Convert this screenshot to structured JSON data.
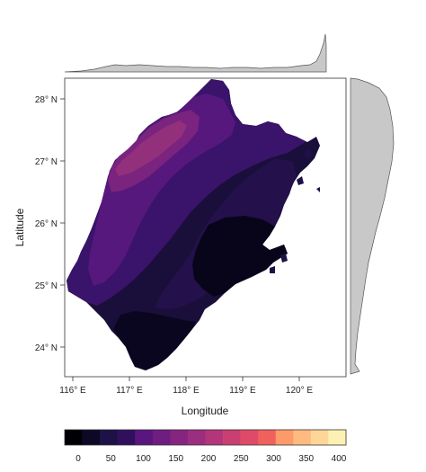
{
  "map": {
    "xlabel": "Longitude",
    "ylabel": "Latitude",
    "lon_ticks": [
      "116° E",
      "117° E",
      "118° E",
      "119° E",
      "120° E"
    ],
    "lat_ticks": [
      "24° N",
      "25° N",
      "26° N",
      "27° N",
      "28° N"
    ],
    "lon_range": [
      115.85,
      120.75
    ],
    "lat_range": [
      23.5,
      28.45
    ]
  },
  "colorbar": {
    "ticks": [
      "0",
      "50",
      "100",
      "150",
      "200",
      "250",
      "300",
      "350",
      "400"
    ],
    "range": [
      0,
      400
    ],
    "bins": 16,
    "colors": [
      "#000004",
      "#0c0826",
      "#1d1147",
      "#30105c",
      "#45106b",
      "#5a167e",
      "#6f1d81",
      "#852580",
      "#9c2e7f",
      "#b3367a",
      "#ca3f72",
      "#df4a68",
      "#f0605d",
      "#f97c5d",
      "#fd9a6a",
      "#feba80",
      "#fed798",
      "#fcf1b5"
    ]
  },
  "marginals": {
    "top": "longitude-distribution",
    "right": "latitude-distribution",
    "fill": "#c8c8c8"
  }
}
